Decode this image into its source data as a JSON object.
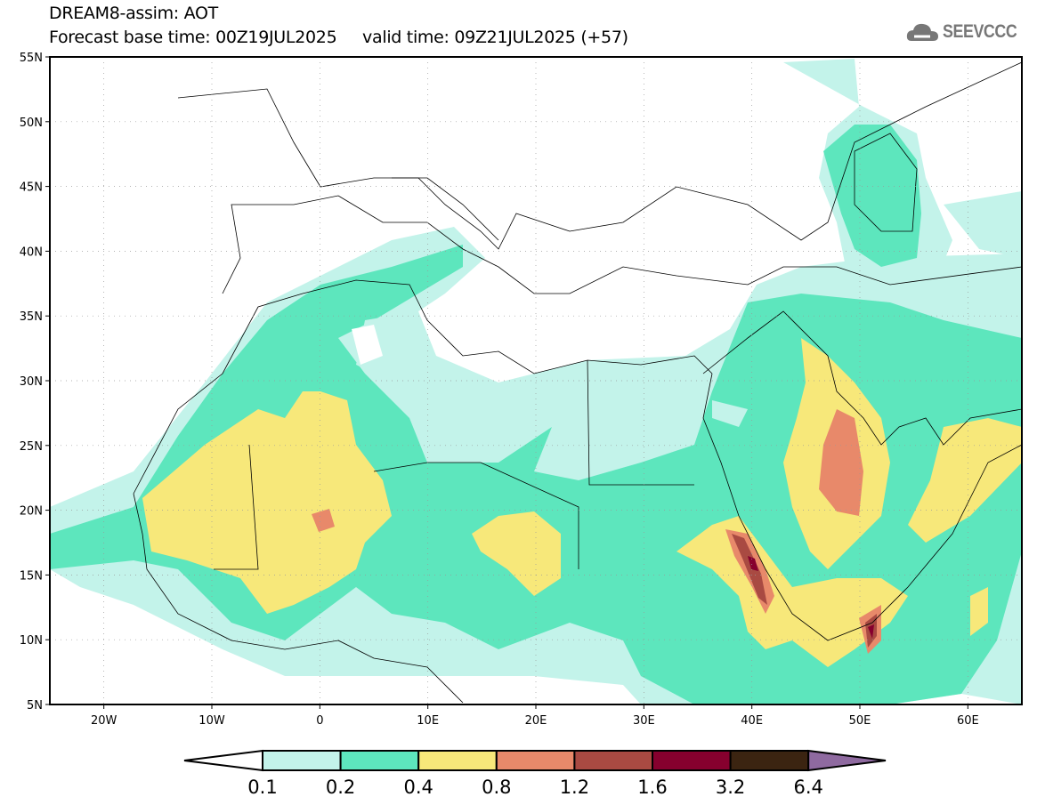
{
  "header": {
    "title": "DREAM8-assim: AOT",
    "subtitle": "Forecast base time: 00Z19JUL2025     valid time: 09Z21JUL2025 (+57)",
    "logo_text": "SEEVCCC"
  },
  "map": {
    "lon_range": [
      -25,
      65
    ],
    "lat_range": [
      5,
      55
    ],
    "lat_labels": [
      "55N",
      "50N",
      "45N",
      "40N",
      "35N",
      "30N",
      "25N",
      "20N",
      "15N",
      "10N",
      "5N"
    ],
    "lat_values": [
      55,
      50,
      45,
      40,
      35,
      30,
      25,
      20,
      15,
      10,
      5
    ],
    "lon_labels": [
      "20W",
      "10W",
      "0",
      "10E",
      "20E",
      "30E",
      "40E",
      "50E",
      "60E"
    ],
    "lon_values": [
      -20,
      -10,
      0,
      10,
      20,
      30,
      40,
      50,
      60
    ]
  },
  "colorbar": {
    "labels": [
      "0.1",
      "0.2",
      "0.4",
      "0.8",
      "1.2",
      "1.6",
      "3.2",
      "6.4"
    ],
    "colors": [
      "#ffffff",
      "#c3f3ea",
      "#5de6bd",
      "#f7e87a",
      "#e8896a",
      "#a94a42",
      "#86002e",
      "#3b2411",
      "#8f6aa0"
    ]
  }
}
